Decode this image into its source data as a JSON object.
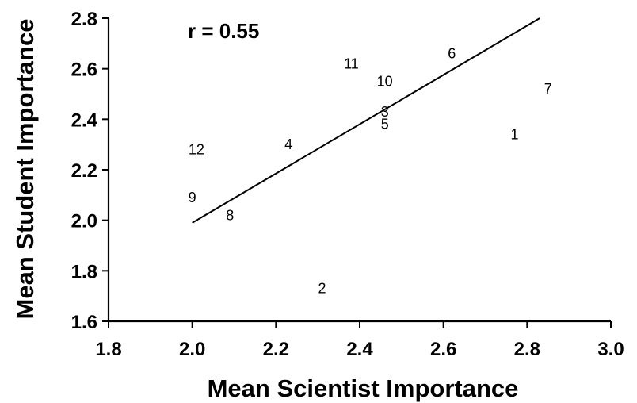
{
  "chart_data": {
    "type": "scatter",
    "xlabel": "Mean Scientist Importance",
    "ylabel": "Mean Student Importance",
    "annotation": "r = 0.55",
    "xlim": [
      1.8,
      3.0
    ],
    "ylim": [
      1.6,
      2.8
    ],
    "xticks": [
      "1.8",
      "2.0",
      "2.2",
      "2.4",
      "2.6",
      "2.8",
      "3.0"
    ],
    "yticks": [
      "1.6",
      "1.8",
      "2.0",
      "2.2",
      "2.4",
      "2.6",
      "2.8"
    ],
    "grid": false,
    "marker": "numeric-label",
    "points": [
      {
        "label": "1",
        "x": 2.77,
        "y": 2.34
      },
      {
        "label": "2",
        "x": 2.31,
        "y": 1.73
      },
      {
        "label": "3",
        "x": 2.46,
        "y": 2.43
      },
      {
        "label": "4",
        "x": 2.23,
        "y": 2.3
      },
      {
        "label": "5",
        "x": 2.46,
        "y": 2.38
      },
      {
        "label": "6",
        "x": 2.62,
        "y": 2.66
      },
      {
        "label": "7",
        "x": 2.85,
        "y": 2.52
      },
      {
        "label": "8",
        "x": 2.09,
        "y": 2.02
      },
      {
        "label": "9",
        "x": 2.0,
        "y": 2.09
      },
      {
        "label": "10",
        "x": 2.46,
        "y": 2.55
      },
      {
        "label": "11",
        "x": 2.38,
        "y": 2.62
      },
      {
        "label": "12",
        "x": 2.01,
        "y": 2.28
      }
    ],
    "fit_line": {
      "x": [
        2.0,
        2.83
      ],
      "y": [
        1.99,
        2.8
      ]
    }
  }
}
